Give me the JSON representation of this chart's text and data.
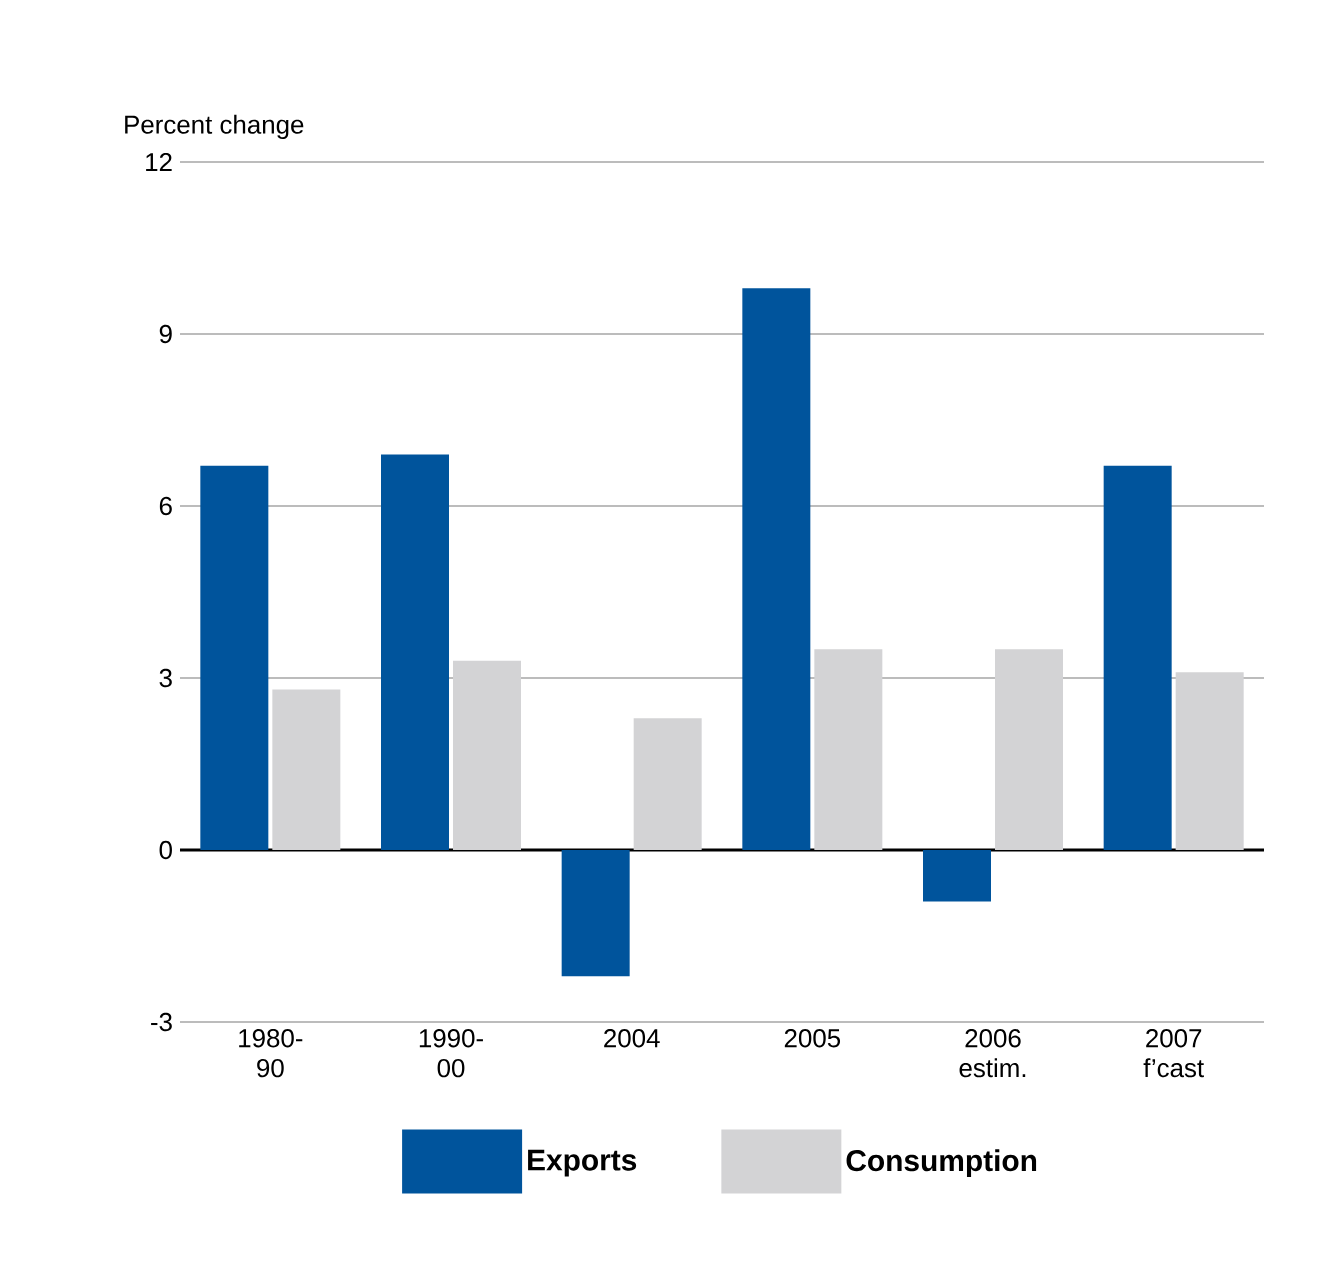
{
  "chart_data": {
    "type": "bar",
    "ylabel": "Percent change",
    "categories": [
      "1980-90",
      "1990-00",
      "2004",
      "2005",
      "2006 estim.",
      "2007 f’cast"
    ],
    "series": [
      {
        "name": "Exports",
        "color": "#00549c",
        "values": [
          6.7,
          6.9,
          -2.2,
          9.8,
          -0.9,
          6.7
        ]
      },
      {
        "name": "Consumption",
        "color": "#d3d3d5",
        "values": [
          2.8,
          3.3,
          2.3,
          3.5,
          3.5,
          3.1
        ]
      }
    ],
    "ylim": [
      -3,
      12
    ],
    "yticks": [
      -3,
      0,
      3,
      6,
      9,
      12
    ],
    "grid": "y",
    "legend": "bottom"
  }
}
